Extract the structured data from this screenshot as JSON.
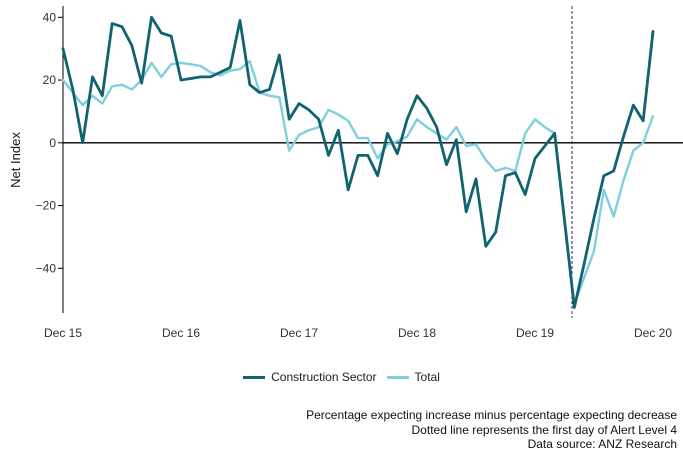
{
  "chart_data": {
    "type": "line",
    "ylabel": "Net Index",
    "xlabel": "",
    "ylim": [
      -55,
      43
    ],
    "yticks": [
      -40,
      -20,
      0,
      20,
      40
    ],
    "ytick_labels": [
      "−40",
      "−20",
      "0",
      "20",
      "40"
    ],
    "xlim": [
      0,
      61
    ],
    "xticks": [
      {
        "x": 0,
        "label": "Dec 15"
      },
      {
        "x": 12,
        "label": "Dec 16"
      },
      {
        "x": 24,
        "label": "Dec 17"
      },
      {
        "x": 36,
        "label": "Dec 18"
      },
      {
        "x": 48,
        "label": "Dec 19"
      },
      {
        "x": 60,
        "label": "Dec 20"
      }
    ],
    "x_unit": "months since Dec 2015",
    "zero_line": true,
    "vline": {
      "x": 52,
      "style": "dotted",
      "meaning": "first day of Alert Level 4"
    },
    "series": [
      {
        "name": "Construction Sector",
        "color": "#10636f",
        "points": [
          [
            0,
            30
          ],
          [
            1,
            17
          ],
          [
            2,
            0
          ],
          [
            3,
            21
          ],
          [
            4,
            15
          ],
          [
            5,
            38
          ],
          [
            6,
            37
          ],
          [
            7,
            31
          ],
          [
            8,
            19
          ],
          [
            9,
            40
          ],
          [
            10,
            35
          ],
          [
            11,
            34
          ],
          [
            12,
            20
          ],
          [
            13,
            20.5
          ],
          [
            14,
            21
          ],
          [
            15,
            21
          ],
          [
            16,
            22.5
          ],
          [
            17,
            24
          ],
          [
            18,
            39
          ],
          [
            19,
            18.5
          ],
          [
            20,
            16
          ],
          [
            21,
            17
          ],
          [
            22,
            28
          ],
          [
            23,
            7.5
          ],
          [
            24,
            12.5
          ],
          [
            25,
            10.5
          ],
          [
            26,
            7.5
          ],
          [
            27,
            -4
          ],
          [
            28,
            4
          ],
          [
            29,
            -15
          ],
          [
            30,
            -4
          ],
          [
            31,
            -4
          ],
          [
            32,
            -10.5
          ],
          [
            33,
            3
          ],
          [
            34,
            -3.5
          ],
          [
            35,
            7.5
          ],
          [
            36,
            15
          ],
          [
            37,
            11
          ],
          [
            38,
            5
          ],
          [
            39,
            -7
          ],
          [
            40,
            1
          ],
          [
            41,
            -22
          ],
          [
            42,
            -11.5
          ],
          [
            43,
            -33
          ],
          [
            44,
            -28.5
          ],
          [
            45,
            -10.5
          ],
          [
            46,
            -9.5
          ],
          [
            47,
            -16.5
          ],
          [
            48,
            -5
          ],
          [
            49,
            -1
          ],
          [
            50,
            3
          ],
          [
            52,
            -52.5
          ],
          [
            53,
            -38.5
          ],
          [
            54,
            -24
          ],
          [
            55,
            -10.5
          ],
          [
            56,
            -9
          ],
          [
            57,
            2
          ],
          [
            58,
            12
          ],
          [
            59,
            7
          ],
          [
            60,
            35.5
          ]
        ]
      },
      {
        "name": "Total",
        "color": "#7fcfdc",
        "points": [
          [
            0,
            20
          ],
          [
            1,
            16
          ],
          [
            2,
            12
          ],
          [
            3,
            15
          ],
          [
            4,
            12.5
          ],
          [
            5,
            18
          ],
          [
            6,
            18.5
          ],
          [
            7,
            17
          ],
          [
            8,
            20
          ],
          [
            9,
            25.5
          ],
          [
            10,
            21
          ],
          [
            11,
            25
          ],
          [
            12,
            25.5
          ],
          [
            13,
            25
          ],
          [
            14,
            24.5
          ],
          [
            15,
            22.5
          ],
          [
            16,
            21.5
          ],
          [
            17,
            23
          ],
          [
            18,
            23.5
          ],
          [
            19,
            26
          ],
          [
            20,
            16
          ],
          [
            21,
            15
          ],
          [
            22,
            14.5
          ],
          [
            23,
            -2.5
          ],
          [
            24,
            2.5
          ],
          [
            25,
            4
          ],
          [
            26,
            5
          ],
          [
            27,
            10.5
          ],
          [
            28,
            9
          ],
          [
            29,
            7
          ],
          [
            30,
            1.5
          ],
          [
            31,
            1.5
          ],
          [
            32,
            -5
          ],
          [
            33,
            -0.5
          ],
          [
            34,
            0.5
          ],
          [
            35,
            2
          ],
          [
            36,
            7.5
          ],
          [
            37,
            5
          ],
          [
            38,
            3
          ],
          [
            39,
            1
          ],
          [
            40,
            5
          ],
          [
            41,
            -1
          ],
          [
            42,
            -0.5
          ],
          [
            43,
            -5.5
          ],
          [
            44,
            -9
          ],
          [
            45,
            -8
          ],
          [
            46,
            -9
          ],
          [
            47,
            3
          ],
          [
            48,
            7.5
          ],
          [
            49,
            5
          ],
          [
            50,
            3
          ],
          [
            52,
            -51.5
          ],
          [
            53,
            -43
          ],
          [
            54,
            -34.5
          ],
          [
            55,
            -15
          ],
          [
            56,
            -23.5
          ],
          [
            57,
            -12
          ],
          [
            58,
            -2.5
          ],
          [
            59,
            0
          ],
          [
            60,
            8.5
          ]
        ]
      }
    ],
    "legend": {
      "placement": "bottom-center"
    },
    "notes": [
      "Percentage expecting increase minus percentage expecting decrease",
      "Dotted line represents the first day of Alert Level 4",
      "Data source: ANZ Research"
    ]
  }
}
